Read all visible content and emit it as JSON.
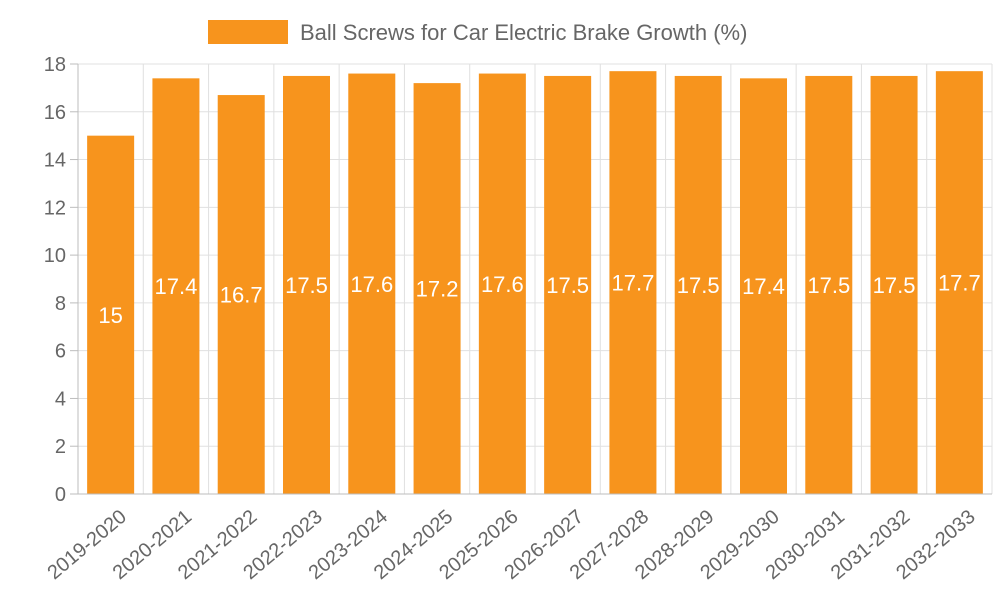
{
  "chart_data": {
    "type": "bar",
    "categories": [
      "2019-2020",
      "2020-2021",
      "2021-2022",
      "2022-2023",
      "2023-2024",
      "2024-2025",
      "2025-2026",
      "2026-2027",
      "2027-2028",
      "2028-2029",
      "2029-2030",
      "2030-2031",
      "2031-2032",
      "2032-2033"
    ],
    "series": [
      {
        "name": "Ball Screws for Car Electric Brake Growth (%)",
        "values": [
          15,
          17.4,
          16.7,
          17.5,
          17.6,
          17.2,
          17.6,
          17.5,
          17.7,
          17.5,
          17.4,
          17.5,
          17.5,
          17.7
        ],
        "color": "#f7941d"
      }
    ],
    "ylim": [
      0,
      18
    ],
    "yticks": [
      0,
      2,
      4,
      6,
      8,
      10,
      12,
      14,
      16,
      18
    ],
    "grid": true,
    "legend": "top-center",
    "data_labels": true
  }
}
